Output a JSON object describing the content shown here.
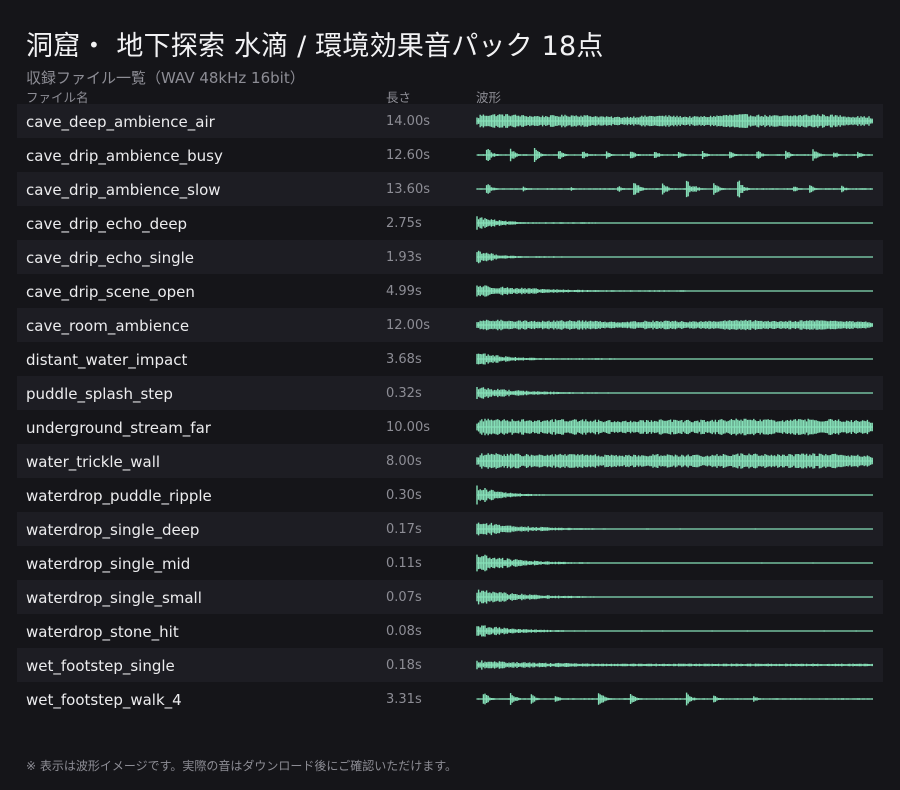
{
  "page": {
    "title": "洞窟・ 地下探索 水滴 / 環境効果音パック 18点",
    "subtitle": "収録ファイル一覧（WAV 48kHz 16bit）",
    "footnote": "※ 表示は波形イメージです。実際の音はダウンロード後にご確認いただけます。"
  },
  "table": {
    "headers": {
      "name": "ファイル名",
      "length": "長さ",
      "waveform": "波形"
    },
    "rows": [
      {
        "name": "cave_deep_ambience_air",
        "length": "14.00s",
        "wave": {
          "type": "continuous",
          "amp": 0.42,
          "fluct": 0.25
        }
      },
      {
        "name": "cave_drip_ambience_busy",
        "length": "12.60s",
        "wave": {
          "type": "drips",
          "base": 0.05,
          "bursts": [
            [
              0.03,
              0.55
            ],
            [
              0.09,
              0.45
            ],
            [
              0.15,
              0.55
            ],
            [
              0.21,
              0.35
            ],
            [
              0.27,
              0.3
            ],
            [
              0.33,
              0.3
            ],
            [
              0.39,
              0.35
            ],
            [
              0.45,
              0.3
            ],
            [
              0.51,
              0.3
            ],
            [
              0.57,
              0.3
            ],
            [
              0.64,
              0.25
            ],
            [
              0.71,
              0.3
            ],
            [
              0.78,
              0.35
            ],
            [
              0.85,
              0.45
            ],
            [
              0.9,
              0.3
            ],
            [
              0.96,
              0.25
            ]
          ]
        }
      },
      {
        "name": "cave_drip_ambience_slow",
        "length": "13.60s",
        "wave": {
          "type": "drips",
          "base": 0.05,
          "bursts": [
            [
              0.03,
              0.4
            ],
            [
              0.12,
              0.2
            ],
            [
              0.24,
              0.15
            ],
            [
              0.36,
              0.2
            ],
            [
              0.4,
              0.7
            ],
            [
              0.47,
              0.5
            ],
            [
              0.55,
              0.3
            ],
            [
              0.53,
              0.7
            ],
            [
              0.6,
              0.45
            ],
            [
              0.66,
              0.7
            ],
            [
              0.8,
              0.25
            ],
            [
              0.84,
              0.3
            ],
            [
              0.92,
              0.25
            ]
          ]
        }
      },
      {
        "name": "cave_drip_echo_deep",
        "length": "2.75s",
        "wave": {
          "type": "decay",
          "amp": 0.55,
          "decay": 0.06,
          "tail": 0.3,
          "residual": 0.05
        }
      },
      {
        "name": "cave_drip_echo_single",
        "length": "1.93s",
        "wave": {
          "type": "decay",
          "amp": 0.6,
          "decay": 0.05,
          "tail": 0.22,
          "residual": 0.05
        }
      },
      {
        "name": "cave_drip_scene_open",
        "length": "4.99s",
        "wave": {
          "type": "decay",
          "amp": 0.5,
          "decay": 0.15,
          "tail": 0.55,
          "residual": 0.05
        }
      },
      {
        "name": "cave_room_ambience",
        "length": "12.00s",
        "wave": {
          "type": "continuous",
          "amp": 0.32,
          "fluct": 0.2
        }
      },
      {
        "name": "distant_water_impact",
        "length": "3.68s",
        "wave": {
          "type": "decay",
          "amp": 0.55,
          "decay": 0.08,
          "tail": 0.35,
          "residual": 0.05
        }
      },
      {
        "name": "puddle_splash_step",
        "length": "0.32s",
        "wave": {
          "type": "decay",
          "amp": 0.5,
          "decay": 0.12,
          "tail": 0.5,
          "residual": 0.04
        }
      },
      {
        "name": "underground_stream_far",
        "length": "10.00s",
        "wave": {
          "type": "continuous",
          "amp": 0.55,
          "fluct": 0.12
        }
      },
      {
        "name": "water_trickle_wall",
        "length": "8.00s",
        "wave": {
          "type": "continuous",
          "amp": 0.5,
          "fluct": 0.12
        }
      },
      {
        "name": "waterdrop_puddle_ripple",
        "length": "0.30s",
        "wave": {
          "type": "attack",
          "amp": 0.75,
          "decay": 0.06,
          "tail": 0.98,
          "residual": 0.03
        }
      },
      {
        "name": "waterdrop_single_deep",
        "length": "0.17s",
        "wave": {
          "type": "attack",
          "amp": 0.6,
          "decay": 0.12,
          "tail": 0.98,
          "residual": 0.04
        }
      },
      {
        "name": "waterdrop_single_mid",
        "length": "0.11s",
        "wave": {
          "type": "attack",
          "amp": 0.75,
          "decay": 0.1,
          "tail": 0.98,
          "residual": 0.04
        }
      },
      {
        "name": "waterdrop_single_small",
        "length": "0.07s",
        "wave": {
          "type": "attack",
          "amp": 0.6,
          "decay": 0.12,
          "tail": 0.85,
          "residual": 0.03
        }
      },
      {
        "name": "waterdrop_stone_hit",
        "length": "0.08s",
        "wave": {
          "type": "attack",
          "amp": 0.5,
          "decay": 0.1,
          "tail": 0.98,
          "residual": 0.04
        }
      },
      {
        "name": "wet_footstep_single",
        "length": "0.18s",
        "wave": {
          "type": "decay",
          "amp": 0.35,
          "decay": 0.25,
          "tail": 1.0,
          "residual": 0.1
        }
      },
      {
        "name": "wet_footstep_walk_4",
        "length": "3.31s",
        "wave": {
          "type": "drips",
          "base": 0.05,
          "bursts": [
            [
              0.02,
              0.6
            ],
            [
              0.09,
              0.45
            ],
            [
              0.14,
              0.35
            ],
            [
              0.2,
              0.3
            ],
            [
              0.31,
              0.6
            ],
            [
              0.39,
              0.4
            ],
            [
              0.53,
              0.5
            ],
            [
              0.6,
              0.25
            ],
            [
              0.7,
              0.2
            ]
          ]
        }
      }
    ]
  },
  "colors": {
    "background": "#151519",
    "row_stripe": "#1d1d23",
    "waveform": "#86e0b8",
    "text": "#ececee",
    "muted": "#8d8d95"
  }
}
